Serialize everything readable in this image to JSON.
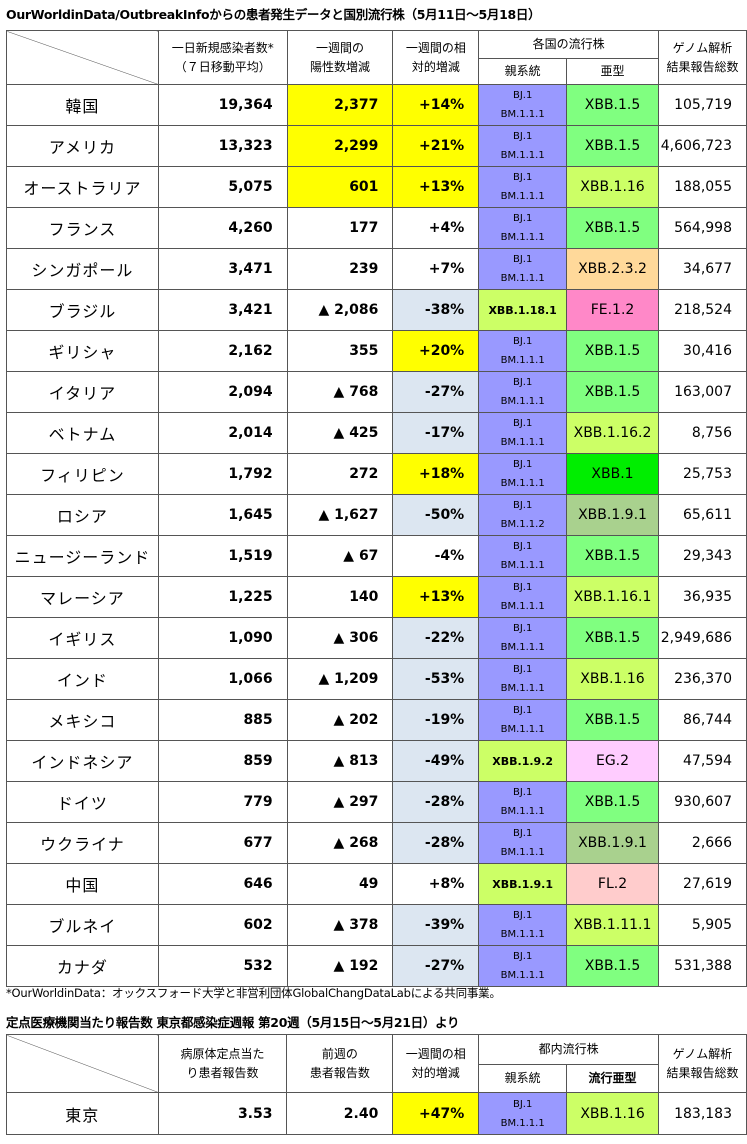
{
  "title": "OurWorldinData/OutbreakInfoからの患者発生データと国別流行株（5月11日〜5月18日）",
  "headers": {
    "daily_new": [
      "一日新規感染者数*",
      "（７日移動平均）"
    ],
    "weekly_change": [
      "一週間の",
      "陽性数増減"
    ],
    "weekly_rel": [
      "一週間の相",
      "対的増減"
    ],
    "variant_group": "各国の流行株",
    "parent": "親系統",
    "sub": "亜型",
    "genome": [
      "ゲノム解析",
      "結果報告総数"
    ]
  },
  "colors": {
    "yellow": "#ffff00",
    "lightblue": "#dce6f1",
    "parent_purple": "#9999ff",
    "parent_green": "#ccff66",
    "xbb15": "#80ff80",
    "xbb1": "#00ee00",
    "tan": "#ffd99a",
    "lime": "#ccff66",
    "pink": "#ff88c8",
    "lavender": "#ffccff",
    "lightpink": "#ffcccc",
    "olive": "#a9d18e"
  },
  "rows": [
    {
      "country": "韓国",
      "daily": "19,364",
      "change": "2,377",
      "change_up": true,
      "rel": "+14%",
      "rel_up": true,
      "parent": [
        "BJ.1",
        "BM.1.1.1"
      ],
      "parent_alt": false,
      "sub": "XBB.1.5",
      "sub_color": "xbb15",
      "total": "105,719"
    },
    {
      "country": "アメリカ",
      "daily": "13,323",
      "change": "2,299",
      "change_up": true,
      "rel": "+21%",
      "rel_up": true,
      "parent": [
        "BJ.1",
        "BM.1.1.1"
      ],
      "parent_alt": false,
      "sub": "XBB.1.5",
      "sub_color": "xbb15",
      "total": "4,606,723"
    },
    {
      "country": "オーストラリア",
      "daily": "5,075",
      "change": "601",
      "change_up": true,
      "rel": "+13%",
      "rel_up": true,
      "parent": [
        "BJ.1",
        "BM.1.1.1"
      ],
      "parent_alt": false,
      "sub": "XBB.1.16",
      "sub_color": "lime",
      "total": "188,055"
    },
    {
      "country": "フランス",
      "daily": "4,260",
      "change": "177",
      "change_up": false,
      "rel": "+4%",
      "rel_up": false,
      "rel_neutral": true,
      "parent": [
        "BJ.1",
        "BM.1.1.1"
      ],
      "parent_alt": false,
      "sub": "XBB.1.5",
      "sub_color": "xbb15",
      "total": "564,998"
    },
    {
      "country": "シンガポール",
      "daily": "3,471",
      "change": "239",
      "change_up": false,
      "rel": "+7%",
      "rel_up": false,
      "rel_neutral": true,
      "parent": [
        "BJ.1",
        "BM.1.1.1"
      ],
      "parent_alt": false,
      "sub": "XBB.2.3.2",
      "sub_color": "tan",
      "total": "34,677"
    },
    {
      "country": "ブラジル",
      "daily": "3,421",
      "change": "▲ 2,086",
      "change_up": false,
      "rel": "-38%",
      "rel_up": false,
      "parent": [
        "XBB.1.18.1"
      ],
      "parent_alt": true,
      "sub": "FE.1.2",
      "sub_color": "pink",
      "total": "218,524"
    },
    {
      "country": "ギリシャ",
      "daily": "2,162",
      "change": "355",
      "change_up": false,
      "rel": "+20%",
      "rel_up": true,
      "parent": [
        "BJ.1",
        "BM.1.1.1"
      ],
      "parent_alt": false,
      "sub": "XBB.1.5",
      "sub_color": "xbb15",
      "total": "30,416"
    },
    {
      "country": "イタリア",
      "daily": "2,094",
      "change": "▲ 768",
      "change_up": false,
      "rel": "-27%",
      "rel_up": false,
      "parent": [
        "BJ.1",
        "BM.1.1.1"
      ],
      "parent_alt": false,
      "sub": "XBB.1.5",
      "sub_color": "xbb15",
      "total": "163,007"
    },
    {
      "country": "ベトナム",
      "daily": "2,014",
      "change": "▲ 425",
      "change_up": false,
      "rel": "-17%",
      "rel_up": false,
      "parent": [
        "BJ.1",
        "BM.1.1.1"
      ],
      "parent_alt": false,
      "sub": "XBB.1.16.2",
      "sub_color": "lime",
      "total": "8,756"
    },
    {
      "country": "フィリピン",
      "daily": "1,792",
      "change": "272",
      "change_up": false,
      "rel": "+18%",
      "rel_up": true,
      "parent": [
        "BJ.1",
        "BM.1.1.1"
      ],
      "parent_alt": false,
      "sub": "XBB.1",
      "sub_color": "xbb1",
      "total": "25,753"
    },
    {
      "country": "ロシア",
      "daily": "1,645",
      "change": "▲ 1,627",
      "change_up": false,
      "rel": "-50%",
      "rel_up": false,
      "parent": [
        "BJ.1",
        "BM.1.1.2"
      ],
      "parent_alt": false,
      "sub": "XBB.1.9.1",
      "sub_color": "olive",
      "total": "65,611"
    },
    {
      "country": "ニュージーランド",
      "daily": "1,519",
      "change": "▲ 67",
      "change_up": false,
      "rel": "-4%",
      "rel_up": false,
      "rel_neutral": true,
      "parent": [
        "BJ.1",
        "BM.1.1.1"
      ],
      "parent_alt": false,
      "sub": "XBB.1.5",
      "sub_color": "xbb15",
      "total": "29,343"
    },
    {
      "country": "マレーシア",
      "daily": "1,225",
      "change": "140",
      "change_up": false,
      "rel": "+13%",
      "rel_up": true,
      "parent": [
        "BJ.1",
        "BM.1.1.1"
      ],
      "parent_alt": false,
      "sub": "XBB.1.16.1",
      "sub_color": "lime",
      "total": "36,935"
    },
    {
      "country": "イギリス",
      "daily": "1,090",
      "change": "▲ 306",
      "change_up": false,
      "rel": "-22%",
      "rel_up": false,
      "parent": [
        "BJ.1",
        "BM.1.1.1"
      ],
      "parent_alt": false,
      "sub": "XBB.1.5",
      "sub_color": "xbb15",
      "total": "2,949,686"
    },
    {
      "country": "インド",
      "daily": "1,066",
      "change": "▲ 1,209",
      "change_up": false,
      "rel": "-53%",
      "rel_up": false,
      "parent": [
        "BJ.1",
        "BM.1.1.1"
      ],
      "parent_alt": false,
      "sub": "XBB.1.16",
      "sub_color": "lime",
      "total": "236,370"
    },
    {
      "country": "メキシコ",
      "daily": "885",
      "change": "▲ 202",
      "change_up": false,
      "rel": "-19%",
      "rel_up": false,
      "parent": [
        "BJ.1",
        "BM.1.1.1"
      ],
      "parent_alt": false,
      "sub": "XBB.1.5",
      "sub_color": "xbb15",
      "total": "86,744"
    },
    {
      "country": "インドネシア",
      "daily": "859",
      "change": "▲ 813",
      "change_up": false,
      "rel": "-49%",
      "rel_up": false,
      "parent": [
        "XBB.1.9.2"
      ],
      "parent_alt": true,
      "sub": "EG.2",
      "sub_color": "lavender",
      "total": "47,594"
    },
    {
      "country": "ドイツ",
      "daily": "779",
      "change": "▲ 297",
      "change_up": false,
      "rel": "-28%",
      "rel_up": false,
      "parent": [
        "BJ.1",
        "BM.1.1.1"
      ],
      "parent_alt": false,
      "sub": "XBB.1.5",
      "sub_color": "xbb15",
      "total": "930,607"
    },
    {
      "country": "ウクライナ",
      "daily": "677",
      "change": "▲ 268",
      "change_up": false,
      "rel": "-28%",
      "rel_up": false,
      "parent": [
        "BJ.1",
        "BM.1.1.1"
      ],
      "parent_alt": false,
      "sub": "XBB.1.9.1",
      "sub_color": "olive",
      "total": "2,666"
    },
    {
      "country": "中国",
      "daily": "646",
      "change": "49",
      "change_up": false,
      "rel": "+8%",
      "rel_up": false,
      "rel_neutral": true,
      "parent": [
        "XBB.1.9.1"
      ],
      "parent_alt": true,
      "sub": "FL.2",
      "sub_color": "lightpink",
      "total": "27,619"
    },
    {
      "country": "ブルネイ",
      "daily": "602",
      "change": "▲ 378",
      "change_up": false,
      "rel": "-39%",
      "rel_up": false,
      "parent": [
        "BJ.1",
        "BM.1.1.1"
      ],
      "parent_alt": false,
      "sub": "XBB.1.11.1",
      "sub_color": "lime",
      "total": "5,905"
    },
    {
      "country": "カナダ",
      "daily": "532",
      "change": "▲ 192",
      "change_up": false,
      "rel": "-27%",
      "rel_up": false,
      "parent": [
        "BJ.1",
        "BM.1.1.1"
      ],
      "parent_alt": false,
      "sub": "XBB.1.5",
      "sub_color": "xbb15",
      "total": "531,388"
    }
  ],
  "note": "*OurWorldinData：オックスフォード大学と非営利団体GlobalChangDataLabによる共同事業。",
  "title2": "定点医療機関当たり報告数  東京都感染症週報 第20週（5月15日〜5月21日）より",
  "headers2": {
    "per_site": [
      "病原体定点当た",
      "り患者報告数"
    ],
    "prev_week": [
      "前週の",
      "患者報告数"
    ],
    "weekly_rel": [
      "一週間の相",
      "対的増減"
    ],
    "variant_group": "都内流行株",
    "parent": "親系統",
    "sub": "流行亜型",
    "genome": [
      "ゲノム解析",
      "結果報告総数"
    ]
  },
  "tokyo": {
    "region": "東京",
    "per_site": "3.53",
    "prev": "2.40",
    "rel": "+47%",
    "parent": [
      "BJ.1",
      "BM.1.1.1"
    ],
    "sub": "XBB.1.16",
    "total": "183,183"
  }
}
